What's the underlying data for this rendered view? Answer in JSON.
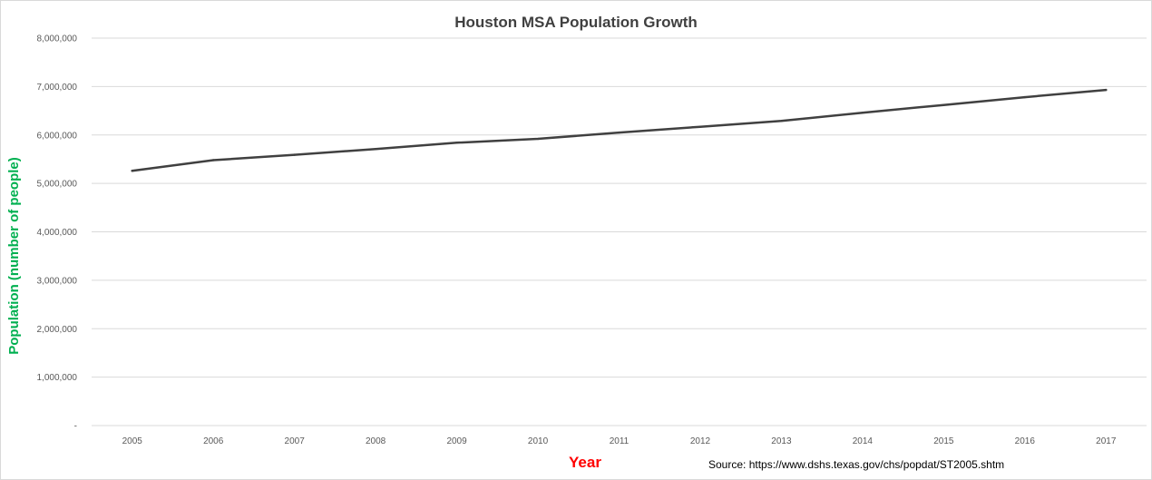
{
  "chart_data": {
    "type": "line",
    "title": "Houston MSA Population Growth",
    "xlabel": "Year",
    "ylabel": "Population (number of people)",
    "source": "Source: https://www.dshs.texas.gov/chs/popdat/ST2005.shtm",
    "categories": [
      "2005",
      "2006",
      "2007",
      "2008",
      "2009",
      "2010",
      "2011",
      "2012",
      "2013",
      "2014",
      "2015",
      "2016",
      "2017"
    ],
    "series": [
      {
        "name": "Population",
        "values": [
          5260000,
          5480000,
          5590000,
          5710000,
          5840000,
          5920000,
          6050000,
          6170000,
          6290000,
          6460000,
          6620000,
          6780000,
          6930000
        ]
      }
    ],
    "ylim": [
      0,
      8000000
    ],
    "yticks": [
      0,
      1000000,
      2000000,
      3000000,
      4000000,
      5000000,
      6000000,
      7000000,
      8000000
    ],
    "ytick_labels": [
      "-",
      "1,000,000",
      "2,000,000",
      "3,000,000",
      "4,000,000",
      "5,000,000",
      "6,000,000",
      "7,000,000",
      "8,000,000"
    ],
    "grid": true,
    "colors": {
      "line": "#404040",
      "grid": "#d9d9d9",
      "ylabel": "#00b050",
      "xlabel": "#ff0000",
      "tick": "#595959"
    }
  }
}
